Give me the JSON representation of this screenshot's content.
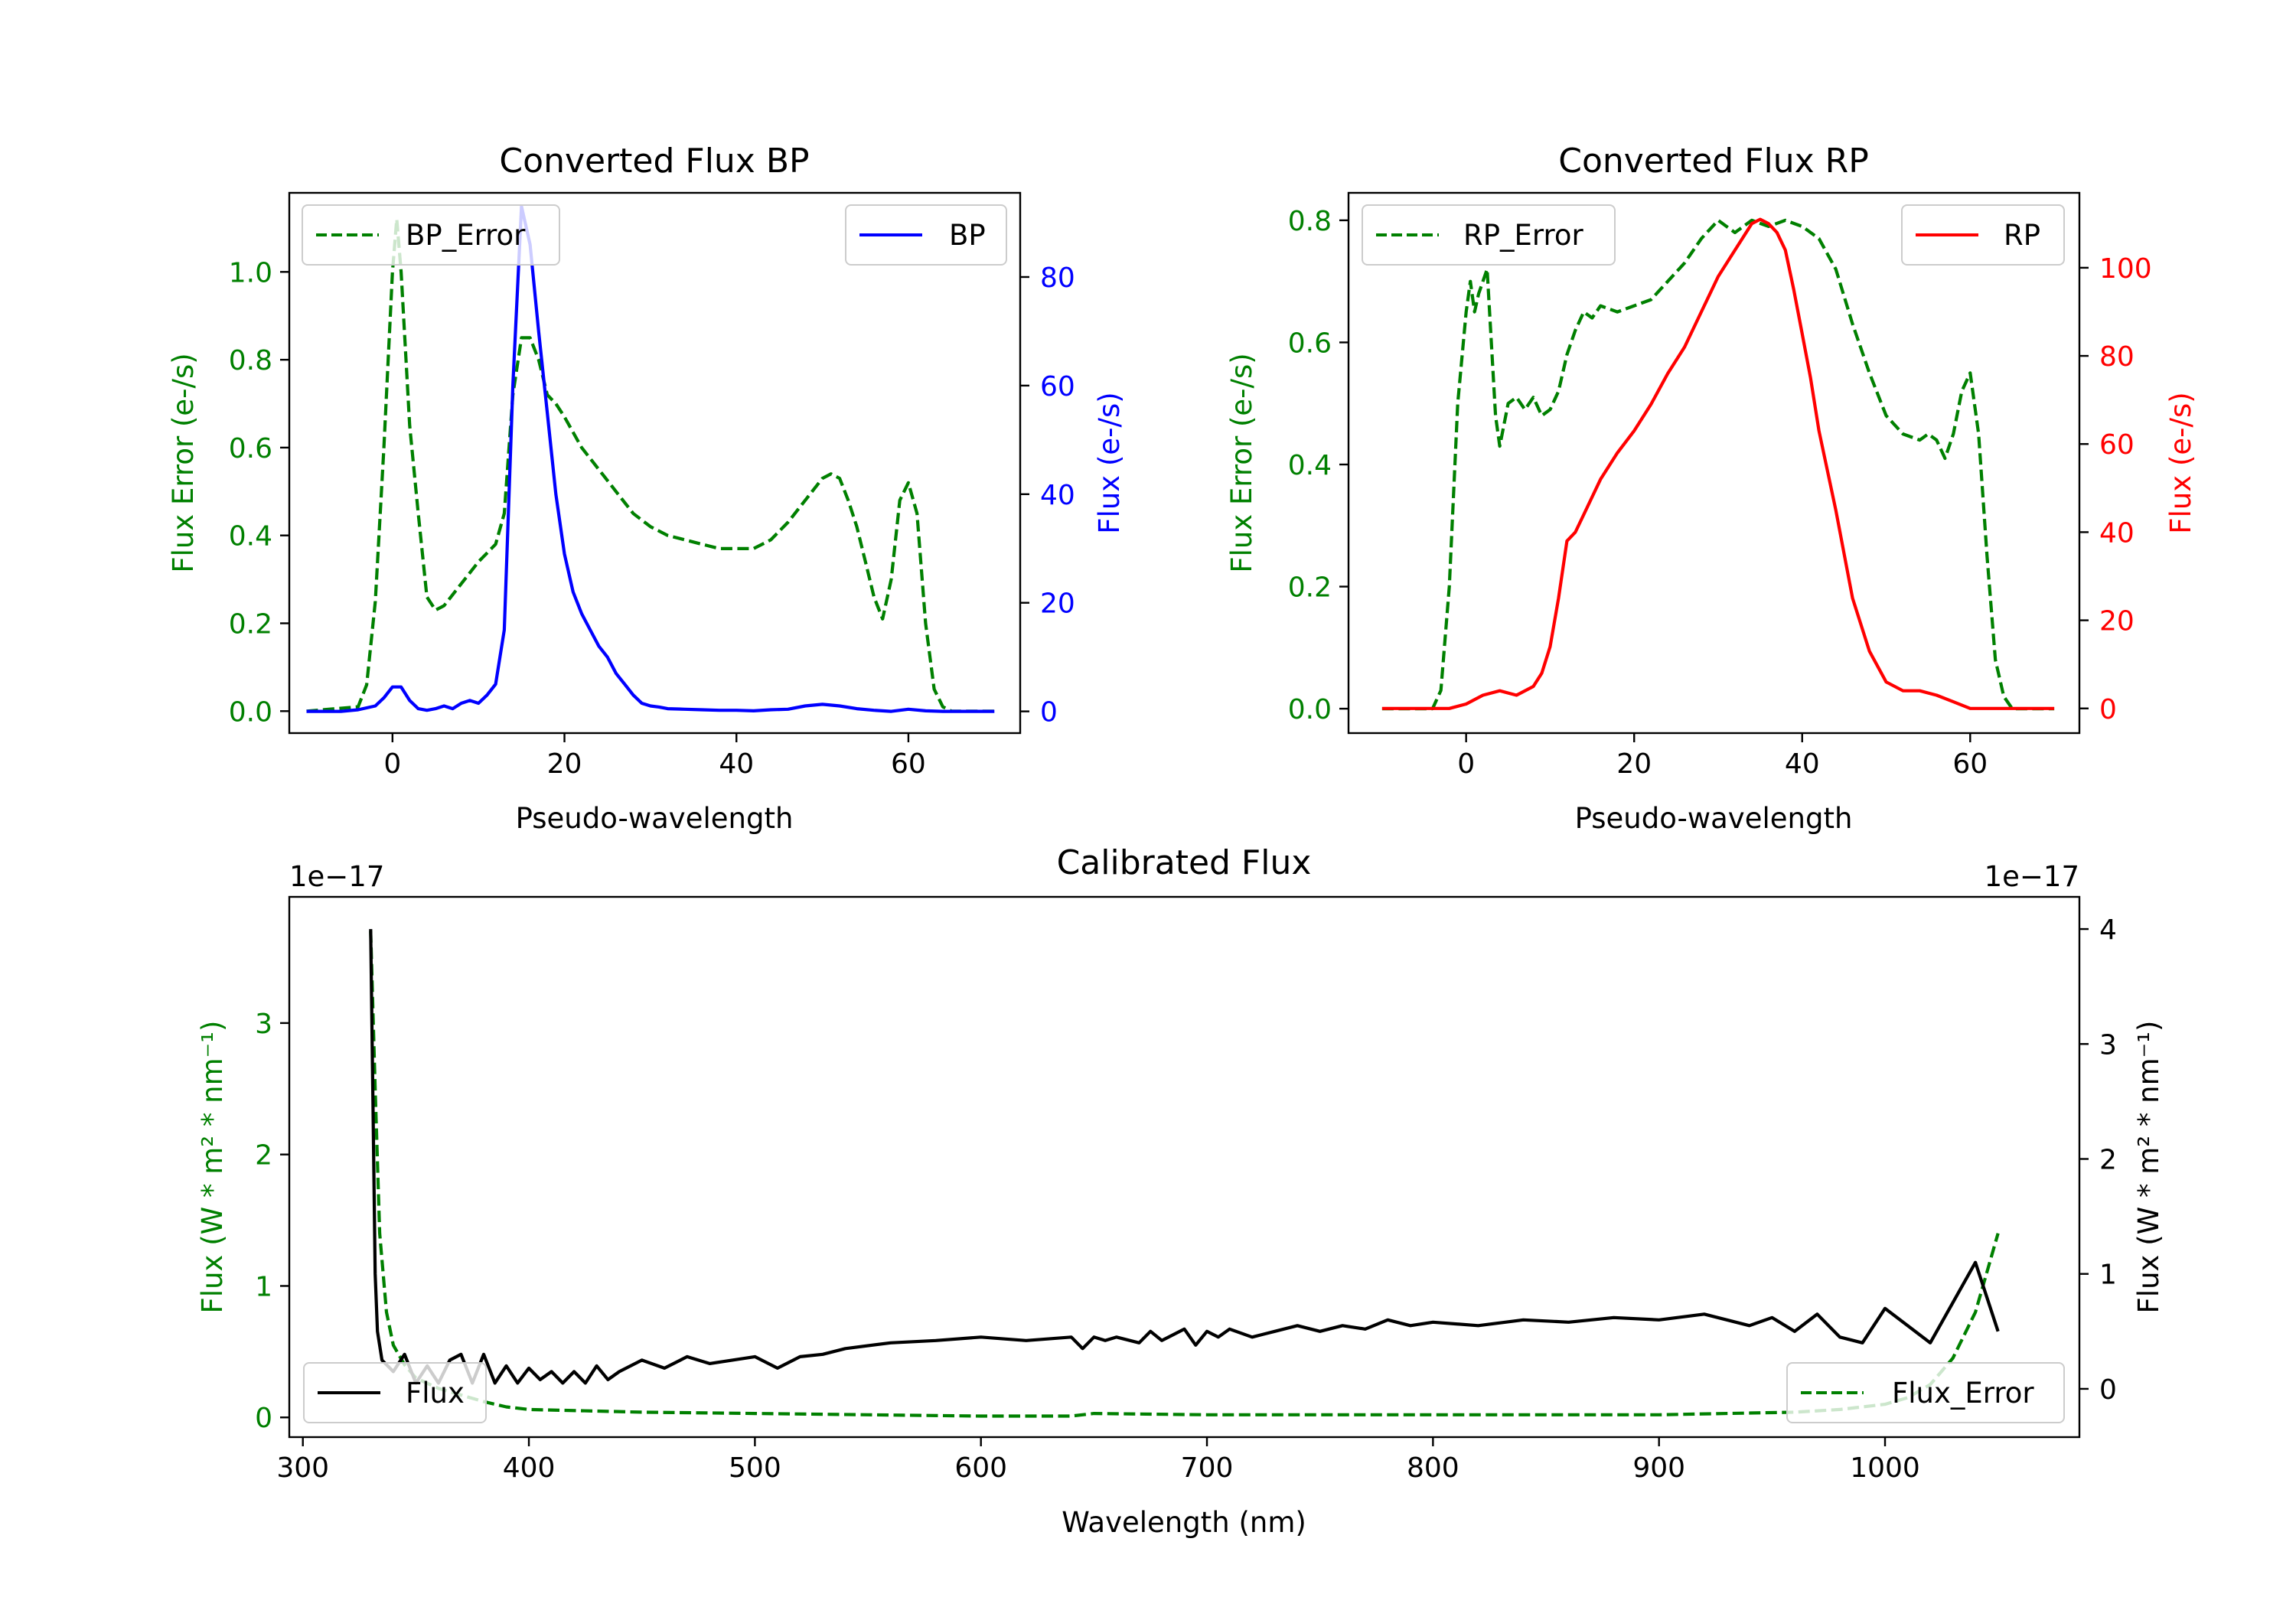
{
  "colors": {
    "bp": "#0000ff",
    "rp": "#ff0000",
    "error": "#008000",
    "flux": "#000000",
    "axis": "#000000",
    "background": "#ffffff"
  },
  "chart_data": [
    {
      "id": "bp",
      "type": "line",
      "title": "Converted Flux BP",
      "xlabel": "Pseudo-wavelength",
      "ylabel_left": "Flux Error (e-/s)",
      "ylabel_right": "Flux (e-/s)",
      "xlim": [
        -12,
        73
      ],
      "ylim_left": [
        -0.05,
        1.18
      ],
      "ylim_right": [
        -4,
        95.5
      ],
      "xticks": [
        "0",
        "20",
        "40",
        "60"
      ],
      "xtick_values": [
        0,
        20,
        40,
        60
      ],
      "yticks_left": [
        "0.0",
        "0.2",
        "0.4",
        "0.6",
        "0.8",
        "1.0"
      ],
      "ytick_values_left": [
        0,
        0.2,
        0.4,
        0.6,
        0.8,
        1.0
      ],
      "yticks_right": [
        "0",
        "20",
        "40",
        "60",
        "80"
      ],
      "ytick_values_right": [
        0,
        20,
        40,
        60,
        80
      ],
      "legend_left": {
        "label": "BP_Error",
        "position": "upper-left"
      },
      "legend_right": {
        "label": "BP",
        "position": "upper-right"
      },
      "series": [
        {
          "name": "BP_Error",
          "axis": "left",
          "style": "dashed",
          "color": "error",
          "x": [
            -10,
            -4,
            -3,
            -2,
            -1,
            0,
            0.5,
            1,
            2,
            3,
            4,
            5,
            6,
            8,
            10,
            12,
            13,
            14,
            15,
            16,
            17,
            18,
            19,
            20,
            22,
            24,
            26,
            28,
            30,
            32,
            34,
            36,
            38,
            40,
            42,
            44,
            46,
            48,
            50,
            51,
            52,
            53,
            54,
            55,
            56,
            57,
            58,
            59,
            60,
            61,
            62,
            63,
            64,
            65,
            66,
            68,
            70
          ],
          "y": [
            0,
            0.01,
            0.06,
            0.25,
            0.6,
            1.0,
            1.12,
            1.0,
            0.65,
            0.45,
            0.26,
            0.23,
            0.24,
            0.29,
            0.34,
            0.38,
            0.45,
            0.72,
            0.85,
            0.85,
            0.8,
            0.72,
            0.7,
            0.67,
            0.6,
            0.55,
            0.5,
            0.45,
            0.42,
            0.4,
            0.39,
            0.38,
            0.37,
            0.37,
            0.37,
            0.39,
            0.43,
            0.48,
            0.53,
            0.54,
            0.53,
            0.48,
            0.42,
            0.34,
            0.26,
            0.21,
            0.3,
            0.48,
            0.52,
            0.45,
            0.2,
            0.05,
            0.01,
            0,
            0,
            0,
            0
          ]
        },
        {
          "name": "BP",
          "axis": "right",
          "style": "solid",
          "color": "bp",
          "x": [
            -10,
            -6,
            -4,
            -2,
            -1,
            0,
            1,
            2,
            3,
            4,
            5,
            6,
            7,
            8,
            9,
            10,
            11,
            12,
            13,
            14,
            15,
            16,
            17,
            18,
            19,
            20,
            21,
            22,
            23,
            24,
            25,
            26,
            27,
            28,
            29,
            30,
            31,
            32,
            34,
            36,
            38,
            40,
            42,
            44,
            46,
            48,
            50,
            52,
            54,
            56,
            58,
            60,
            62,
            64,
            66,
            70
          ],
          "y": [
            0,
            0,
            0.3,
            1,
            2.5,
            4.5,
            4.5,
            2,
            0.5,
            0.2,
            0.5,
            1,
            0.5,
            1.5,
            2,
            1.5,
            3,
            5,
            15,
            60,
            93,
            86,
            70,
            55,
            40,
            29,
            22,
            18,
            15,
            12,
            10,
            7,
            5,
            3,
            1.5,
            1,
            0.8,
            0.5,
            0.4,
            0.3,
            0.2,
            0.2,
            0.1,
            0.3,
            0.4,
            1,
            1.3,
            1,
            0.5,
            0.2,
            0,
            0.4,
            0.1,
            0,
            0,
            0
          ]
        }
      ]
    },
    {
      "id": "rp",
      "type": "line",
      "title": "Converted Flux RP",
      "xlabel": "Pseudo-wavelength",
      "ylabel_left": "Flux Error (e-/s)",
      "ylabel_right": "Flux (e-/s)",
      "xlim": [
        -14,
        73
      ],
      "ylim_left": [
        -0.04,
        0.845
      ],
      "ylim_right": [
        -5.6,
        117
      ],
      "xticks": [
        "0",
        "20",
        "40",
        "60"
      ],
      "xtick_values": [
        0,
        20,
        40,
        60
      ],
      "yticks_left": [
        "0.0",
        "0.2",
        "0.4",
        "0.6",
        "0.8"
      ],
      "ytick_values_left": [
        0,
        0.2,
        0.4,
        0.6,
        0.8
      ],
      "yticks_right": [
        "0",
        "20",
        "40",
        "60",
        "80",
        "100"
      ],
      "ytick_values_right": [
        0,
        20,
        40,
        60,
        80,
        100
      ],
      "legend_left": {
        "label": "RP_Error",
        "position": "upper-left"
      },
      "legend_right": {
        "label": "RP",
        "position": "upper-right"
      },
      "series": [
        {
          "name": "RP_Error",
          "axis": "left",
          "style": "dashed",
          "color": "error",
          "x": [
            -10,
            -4,
            -3,
            -2,
            -1,
            0,
            0.5,
            1,
            1.5,
            2,
            2.5,
            3,
            3.5,
            4,
            5,
            6,
            7,
            8,
            9,
            10,
            11,
            12,
            13,
            14,
            15,
            16,
            18,
            20,
            22,
            24,
            26,
            28,
            30,
            32,
            34,
            36,
            38,
            40,
            42,
            44,
            46,
            48,
            50,
            52,
            54,
            55,
            56,
            57,
            58,
            59,
            60,
            61,
            62,
            63,
            64,
            65,
            66,
            70
          ],
          "y": [
            0,
            0,
            0.03,
            0.2,
            0.5,
            0.65,
            0.7,
            0.65,
            0.68,
            0.7,
            0.72,
            0.6,
            0.48,
            0.43,
            0.5,
            0.51,
            0.49,
            0.51,
            0.48,
            0.49,
            0.52,
            0.58,
            0.62,
            0.65,
            0.64,
            0.66,
            0.65,
            0.66,
            0.67,
            0.7,
            0.73,
            0.77,
            0.8,
            0.78,
            0.8,
            0.79,
            0.8,
            0.79,
            0.77,
            0.72,
            0.63,
            0.55,
            0.48,
            0.45,
            0.44,
            0.45,
            0.44,
            0.41,
            0.45,
            0.52,
            0.55,
            0.45,
            0.25,
            0.08,
            0.02,
            0,
            0,
            0
          ]
        },
        {
          "name": "RP",
          "axis": "right",
          "style": "solid",
          "color": "rp",
          "x": [
            -10,
            -2,
            0,
            2,
            4,
            6,
            8,
            9,
            10,
            11,
            12,
            13,
            14,
            16,
            18,
            20,
            22,
            24,
            26,
            28,
            30,
            32,
            34,
            35,
            36,
            37,
            38,
            39,
            40,
            41,
            42,
            44,
            46,
            48,
            50,
            52,
            54,
            56,
            58,
            60,
            62,
            66,
            70
          ],
          "y": [
            0,
            0,
            1,
            3,
            4,
            3,
            5,
            8,
            14,
            25,
            38,
            40,
            44,
            52,
            58,
            63,
            69,
            76,
            82,
            90,
            98,
            104,
            110,
            111,
            110,
            108,
            104,
            95,
            85,
            75,
            63,
            45,
            25,
            13,
            6,
            4,
            4,
            3,
            1.5,
            0,
            0,
            0,
            0
          ]
        }
      ]
    },
    {
      "id": "calibrated",
      "type": "line",
      "title": "Calibrated Flux",
      "xlabel": "Wavelength (nm)",
      "ylabel_left": "Flux (W * m² * nm⁻¹)",
      "ylabel_right": "Flux (W * m² * nm⁻¹)",
      "offset_left": "1e−17",
      "offset_right": "1e−17",
      "xlim": [
        294,
        1086
      ],
      "ylim_left": [
        -0.15,
        3.96
      ],
      "ylim_right": [
        -0.42,
        4.28
      ],
      "xticks": [
        "300",
        "400",
        "500",
        "600",
        "700",
        "800",
        "900",
        "1000"
      ],
      "xtick_values": [
        300,
        400,
        500,
        600,
        700,
        800,
        900,
        1000
      ],
      "yticks_left": [
        "0",
        "1",
        "2",
        "3"
      ],
      "ytick_values_left": [
        0,
        1,
        2,
        3
      ],
      "yticks_right": [
        "0",
        "1",
        "2",
        "3",
        "4"
      ],
      "ytick_values_right": [
        0,
        1,
        2,
        3,
        4
      ],
      "legend_left": {
        "label": "Flux",
        "position": "lower-left"
      },
      "legend_right": {
        "label": "Flux_Error",
        "position": "lower-right"
      },
      "series": [
        {
          "name": "Flux_Error",
          "axis": "left",
          "style": "dashed",
          "color": "error",
          "x": [
            330,
            332,
            334,
            337,
            340,
            345,
            350,
            360,
            370,
            380,
            390,
            400,
            450,
            500,
            550,
            600,
            640,
            650,
            700,
            800,
            900,
            960,
            980,
            1000,
            1010,
            1020,
            1030,
            1040,
            1045,
            1050
          ],
          "y": [
            3.7,
            2.5,
            1.4,
            0.8,
            0.55,
            0.4,
            0.3,
            0.22,
            0.17,
            0.12,
            0.08,
            0.06,
            0.04,
            0.03,
            0.02,
            0.01,
            0.01,
            0.03,
            0.02,
            0.02,
            0.02,
            0.04,
            0.06,
            0.1,
            0.15,
            0.25,
            0.45,
            0.8,
            1.1,
            1.4
          ]
        },
        {
          "name": "Flux",
          "axis": "right",
          "style": "solid",
          "color": "flux",
          "x": [
            330,
            331,
            332,
            333,
            335,
            340,
            345,
            350,
            355,
            360,
            365,
            370,
            375,
            380,
            385,
            390,
            395,
            400,
            405,
            410,
            415,
            420,
            425,
            430,
            435,
            440,
            450,
            460,
            470,
            480,
            490,
            500,
            510,
            520,
            530,
            540,
            560,
            580,
            600,
            620,
            640,
            645,
            650,
            655,
            660,
            670,
            675,
            680,
            690,
            695,
            700,
            705,
            710,
            720,
            730,
            740,
            750,
            760,
            770,
            780,
            790,
            800,
            820,
            840,
            860,
            880,
            900,
            920,
            940,
            950,
            960,
            970,
            980,
            990,
            1000,
            1010,
            1020,
            1030,
            1040,
            1045,
            1050
          ],
          "y": [
            4.0,
            2.5,
            1.0,
            0.5,
            0.25,
            0.15,
            0.3,
            0.05,
            0.2,
            0.05,
            0.25,
            0.3,
            0.05,
            0.3,
            0.05,
            0.2,
            0.05,
            0.18,
            0.08,
            0.15,
            0.05,
            0.15,
            0.05,
            0.2,
            0.08,
            0.15,
            0.25,
            0.18,
            0.28,
            0.22,
            0.25,
            0.28,
            0.18,
            0.28,
            0.3,
            0.35,
            0.4,
            0.42,
            0.45,
            0.42,
            0.45,
            0.35,
            0.45,
            0.42,
            0.45,
            0.4,
            0.5,
            0.42,
            0.52,
            0.38,
            0.5,
            0.45,
            0.52,
            0.45,
            0.5,
            0.55,
            0.5,
            0.55,
            0.52,
            0.6,
            0.55,
            0.58,
            0.55,
            0.6,
            0.58,
            0.62,
            0.6,
            0.65,
            0.55,
            0.62,
            0.5,
            0.65,
            0.45,
            0.4,
            0.7,
            0.55,
            0.4,
            0.75,
            1.1,
            0.8,
            0.5
          ]
        }
      ]
    }
  ]
}
